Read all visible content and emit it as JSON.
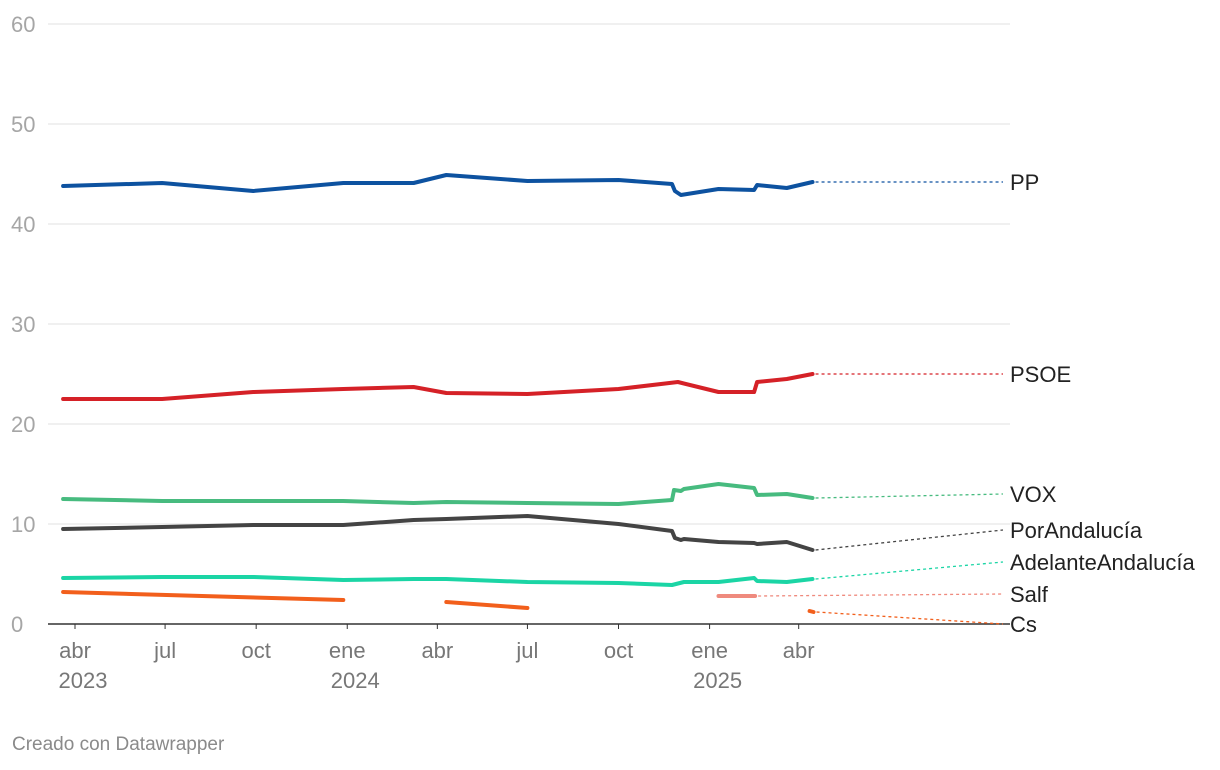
{
  "chart_data": {
    "type": "line",
    "title": "",
    "xlabel": "",
    "ylabel": "",
    "ylim": [
      0,
      60
    ],
    "y_ticks": [
      "0",
      "10",
      "20",
      "30",
      "40",
      "50",
      "60"
    ],
    "x_ticks": [
      {
        "month": "2023-04",
        "label": "abr",
        "year": "2023"
      },
      {
        "month": "2023-07",
        "label": "jul",
        "year": ""
      },
      {
        "month": "2023-10",
        "label": "oct",
        "year": ""
      },
      {
        "month": "2024-01",
        "label": "ene",
        "year": "2024"
      },
      {
        "month": "2024-04",
        "label": "abr",
        "year": ""
      },
      {
        "month": "2024-07",
        "label": "jul",
        "year": ""
      },
      {
        "month": "2024-10",
        "label": "oct",
        "year": ""
      },
      {
        "month": "2025-01",
        "label": "ene",
        "year": "2025"
      },
      {
        "month": "2025-04",
        "label": "abr",
        "year": ""
      }
    ],
    "series": [
      {
        "name": "PP",
        "color": "#0d52a0",
        "points": [
          [
            "2023-03-20",
            43.8
          ],
          [
            "2023-06-28",
            44.1
          ],
          [
            "2023-09-28",
            43.3
          ],
          [
            "2023-12-28",
            44.1
          ],
          [
            "2024-03-08",
            44.1
          ],
          [
            "2024-04-10",
            44.9
          ],
          [
            "2024-07-01",
            44.3
          ],
          [
            "2024-10-01",
            44.4
          ],
          [
            "2024-11-24",
            44.0
          ],
          [
            "2024-11-27",
            43.3
          ],
          [
            "2024-12-03",
            42.9
          ],
          [
            "2025-01-10",
            43.5
          ],
          [
            "2025-02-15",
            43.4
          ],
          [
            "2025-02-18",
            43.9
          ],
          [
            "2025-03-20",
            43.6
          ],
          [
            "2025-04-15",
            44.2
          ]
        ]
      },
      {
        "name": "PSOE",
        "color": "#d52127",
        "points": [
          [
            "2023-03-20",
            22.5
          ],
          [
            "2023-06-28",
            22.5
          ],
          [
            "2023-09-28",
            23.2
          ],
          [
            "2023-12-28",
            23.5
          ],
          [
            "2024-03-08",
            23.7
          ],
          [
            "2024-04-10",
            23.1
          ],
          [
            "2024-07-01",
            23.0
          ],
          [
            "2024-10-01",
            23.5
          ],
          [
            "2024-11-30",
            24.2
          ],
          [
            "2025-01-10",
            23.2
          ],
          [
            "2025-02-15",
            23.2
          ],
          [
            "2025-02-18",
            24.2
          ],
          [
            "2025-03-20",
            24.5
          ],
          [
            "2025-04-15",
            25.0
          ]
        ]
      },
      {
        "name": "VOX",
        "color": "#47bb7f",
        "points": [
          [
            "2023-03-20",
            12.5
          ],
          [
            "2023-06-28",
            12.3
          ],
          [
            "2023-09-28",
            12.3
          ],
          [
            "2023-12-28",
            12.3
          ],
          [
            "2024-03-08",
            12.1
          ],
          [
            "2024-04-10",
            12.2
          ],
          [
            "2024-07-01",
            12.1
          ],
          [
            "2024-10-01",
            12.0
          ],
          [
            "2024-11-24",
            12.4
          ],
          [
            "2024-11-26",
            13.4
          ],
          [
            "2024-12-03",
            13.3
          ],
          [
            "2024-12-06",
            13.5
          ],
          [
            "2025-01-10",
            14.0
          ],
          [
            "2025-02-15",
            13.6
          ],
          [
            "2025-02-18",
            12.9
          ],
          [
            "2025-03-20",
            13.0
          ],
          [
            "2025-04-15",
            12.6
          ]
        ]
      },
      {
        "name": "PorAndalucía",
        "color": "#444444",
        "points": [
          [
            "2023-03-20",
            9.5
          ],
          [
            "2023-06-28",
            9.7
          ],
          [
            "2023-09-28",
            9.9
          ],
          [
            "2023-12-28",
            9.9
          ],
          [
            "2024-03-08",
            10.4
          ],
          [
            "2024-04-10",
            10.5
          ],
          [
            "2024-07-01",
            10.8
          ],
          [
            "2024-10-01",
            10.0
          ],
          [
            "2024-11-24",
            9.3
          ],
          [
            "2024-11-27",
            8.6
          ],
          [
            "2024-12-03",
            8.4
          ],
          [
            "2024-12-06",
            8.5
          ],
          [
            "2025-01-10",
            8.2
          ],
          [
            "2025-02-15",
            8.1
          ],
          [
            "2025-02-18",
            8.0
          ],
          [
            "2025-03-20",
            8.2
          ],
          [
            "2025-04-15",
            7.4
          ]
        ]
      },
      {
        "name": "AdelanteAndalucía",
        "color": "#1bd5a5",
        "points": [
          [
            "2023-03-20",
            4.6
          ],
          [
            "2023-06-28",
            4.7
          ],
          [
            "2023-09-28",
            4.7
          ],
          [
            "2023-12-28",
            4.4
          ],
          [
            "2024-03-08",
            4.5
          ],
          [
            "2024-04-10",
            4.5
          ],
          [
            "2024-07-01",
            4.2
          ],
          [
            "2024-10-01",
            4.1
          ],
          [
            "2024-11-24",
            3.9
          ],
          [
            "2024-12-06",
            4.2
          ],
          [
            "2025-01-10",
            4.2
          ],
          [
            "2025-02-15",
            4.6
          ],
          [
            "2025-02-18",
            4.3
          ],
          [
            "2025-03-20",
            4.2
          ],
          [
            "2025-04-15",
            4.5
          ]
        ]
      },
      {
        "name": "Salf",
        "color": "#ef8a7e",
        "points": [
          [
            "2025-01-10",
            2.8
          ],
          [
            "2025-02-16",
            2.8
          ]
        ]
      },
      {
        "name": "Cs",
        "color": "#f25f1c",
        "segments": [
          [
            [
              "2023-03-20",
              3.2
            ],
            [
              "2023-12-28",
              2.4
            ]
          ],
          [
            [
              "2024-04-10",
              2.2
            ],
            [
              "2024-07-01",
              1.6
            ]
          ],
          [
            [
              "2025-04-12",
              1.3
            ],
            [
              "2025-04-16",
              1.2
            ]
          ]
        ]
      }
    ],
    "labels": [
      {
        "series": "PP",
        "text": "PP",
        "value": 44.2
      },
      {
        "series": "PSOE",
        "text": "PSOE",
        "value": 25.0
      },
      {
        "series": "VOX",
        "text": "VOX",
        "value": 13.0
      },
      {
        "series": "PorAndalucía",
        "text": "PorAndalucía",
        "value": 9.4
      },
      {
        "series": "AdelanteAndalucía",
        "text": "AdelanteAndalucía",
        "value": 6.2
      },
      {
        "series": "Salf",
        "text": "Salf",
        "value": 3.0
      },
      {
        "series": "Cs",
        "text": "Cs",
        "value": 0.0
      }
    ]
  },
  "footer": {
    "credit": "Creado con Datawrapper"
  }
}
